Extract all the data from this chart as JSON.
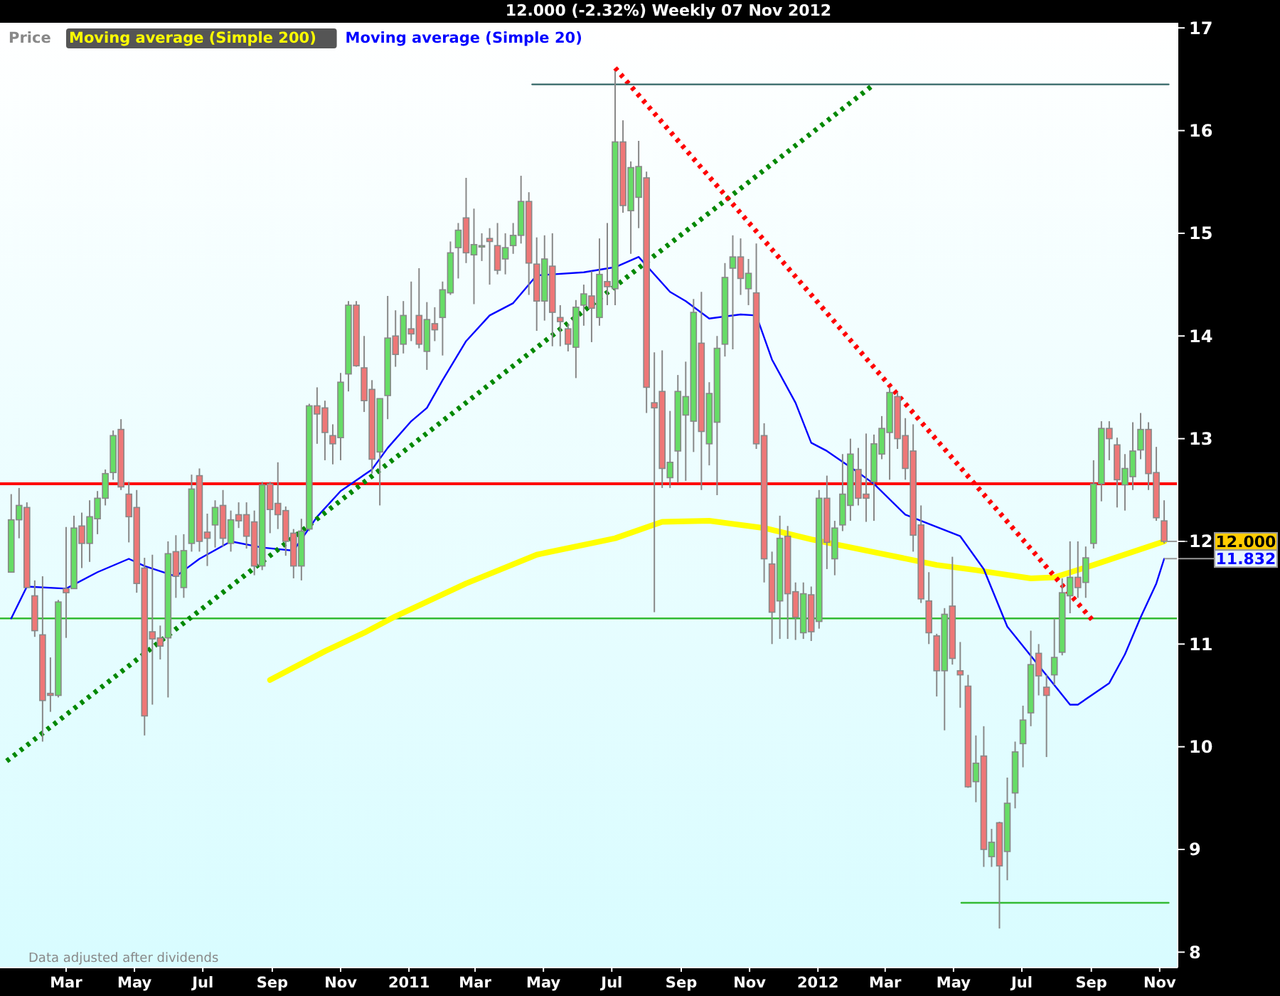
{
  "chart_data": {
    "type": "candlestick",
    "title": "12.000 (-2.32%)    Weekly  07 Nov 2012",
    "legend": "top left",
    "grid": false,
    "xlim": [
      "2010-01-01",
      "2012-11-17"
    ],
    "xticks": [
      {
        "value": "2010-03-01",
        "label": "Mar"
      },
      {
        "value": "2010-05-01",
        "label": "May"
      },
      {
        "value": "2010-07-01",
        "label": "Jul"
      },
      {
        "value": "2010-09-01",
        "label": "Sep"
      },
      {
        "value": "2010-11-01",
        "label": "Nov"
      },
      {
        "value": "2011-01-01",
        "label": "2011"
      },
      {
        "value": "2011-03-01",
        "label": "Mar"
      },
      {
        "value": "2011-05-01",
        "label": "May"
      },
      {
        "value": "2011-07-01",
        "label": "Jul"
      },
      {
        "value": "2011-09-01",
        "label": "Sep"
      },
      {
        "value": "2011-11-01",
        "label": "Nov"
      },
      {
        "value": "2012-01-01",
        "label": "2012"
      },
      {
        "value": "2012-03-01",
        "label": "Mar"
      },
      {
        "value": "2012-05-01",
        "label": "May"
      },
      {
        "value": "2012-07-01",
        "label": "Jul"
      },
      {
        "value": "2012-09-01",
        "label": "Sep"
      },
      {
        "value": "2012-11-01",
        "label": "Nov"
      }
    ],
    "ylim": [
      7.85,
      17.05
    ],
    "yticks": [
      8,
      9,
      10,
      11,
      12,
      13,
      14,
      15,
      16,
      17
    ],
    "x": [
      "2010-01-11",
      "2010-01-18",
      "2010-01-25",
      "2010-02-01",
      "2010-02-08",
      "2010-02-15",
      "2010-02-22",
      "2010-03-01",
      "2010-03-08",
      "2010-03-15",
      "2010-03-22",
      "2010-03-29",
      "2010-04-05",
      "2010-04-12",
      "2010-04-19",
      "2010-04-26",
      "2010-05-03",
      "2010-05-10",
      "2010-05-17",
      "2010-05-24",
      "2010-05-31",
      "2010-06-07",
      "2010-06-14",
      "2010-06-21",
      "2010-06-28",
      "2010-07-05",
      "2010-07-12",
      "2010-07-19",
      "2010-07-26",
      "2010-08-02",
      "2010-08-09",
      "2010-08-16",
      "2010-08-23",
      "2010-08-30",
      "2010-09-06",
      "2010-09-13",
      "2010-09-20",
      "2010-09-27",
      "2010-10-04",
      "2010-10-11",
      "2010-10-18",
      "2010-10-25",
      "2010-11-01",
      "2010-11-08",
      "2010-11-15",
      "2010-11-22",
      "2010-11-29",
      "2010-12-06",
      "2010-12-13",
      "2010-12-20",
      "2010-12-27",
      "2011-01-03",
      "2011-01-10",
      "2011-01-17",
      "2011-01-24",
      "2011-01-31",
      "2011-02-07",
      "2011-02-14",
      "2011-02-21",
      "2011-02-28",
      "2011-03-07",
      "2011-03-14",
      "2011-03-21",
      "2011-03-28",
      "2011-04-04",
      "2011-04-11",
      "2011-04-18",
      "2011-04-25",
      "2011-05-02",
      "2011-05-09",
      "2011-05-16",
      "2011-05-23",
      "2011-05-30",
      "2011-06-06",
      "2011-06-13",
      "2011-06-20",
      "2011-06-27",
      "2011-07-04",
      "2011-07-11",
      "2011-07-18",
      "2011-07-25",
      "2011-08-01",
      "2011-08-08",
      "2011-08-15",
      "2011-08-22",
      "2011-08-29",
      "2011-09-05",
      "2011-09-12",
      "2011-09-19",
      "2011-09-26",
      "2011-10-03",
      "2011-10-10",
      "2011-10-17",
      "2011-10-24",
      "2011-10-31",
      "2011-11-07",
      "2011-11-14",
      "2011-11-21",
      "2011-11-28",
      "2011-12-05",
      "2011-12-12",
      "2011-12-19",
      "2011-12-26",
      "2012-01-02",
      "2012-01-09",
      "2012-01-16",
      "2012-01-23",
      "2012-01-30",
      "2012-02-06",
      "2012-02-13",
      "2012-02-20",
      "2012-02-27",
      "2012-03-05",
      "2012-03-12",
      "2012-03-19",
      "2012-03-26",
      "2012-04-02",
      "2012-04-09",
      "2012-04-16",
      "2012-04-23",
      "2012-04-30",
      "2012-05-07",
      "2012-05-14",
      "2012-05-21",
      "2012-05-28",
      "2012-06-04",
      "2012-06-11",
      "2012-06-18",
      "2012-06-25",
      "2012-07-02",
      "2012-07-09",
      "2012-07-16",
      "2012-07-23",
      "2012-07-30",
      "2012-08-06",
      "2012-08-13",
      "2012-08-20",
      "2012-08-27",
      "2012-09-03",
      "2012-09-10",
      "2012-09-17",
      "2012-09-24",
      "2012-10-01",
      "2012-10-08",
      "2012-10-15",
      "2012-10-22",
      "2012-10-29",
      "2012-11-05"
    ],
    "series": [
      {
        "name": "Price",
        "type": "candlestick",
        "color": "#888888",
        "ohlc": [
          [
            11.7,
            12.46,
            11.7,
            12.21
          ],
          [
            12.21,
            12.52,
            12.03,
            12.35
          ],
          [
            12.33,
            12.38,
            11.55,
            11.55
          ],
          [
            11.47,
            11.62,
            11.07,
            11.13
          ],
          [
            11.09,
            11.66,
            10.05,
            10.45
          ],
          [
            10.52,
            10.87,
            10.34,
            10.5
          ],
          [
            10.5,
            11.43,
            10.48,
            11.41
          ],
          [
            11.54,
            12.14,
            11.06,
            11.5
          ],
          [
            11.54,
            12.25,
            11.54,
            12.13
          ],
          [
            12.15,
            12.28,
            11.74,
            11.98
          ],
          [
            11.98,
            12.4,
            11.8,
            12.24
          ],
          [
            12.22,
            12.49,
            12.07,
            12.42
          ],
          [
            12.42,
            12.7,
            12.35,
            12.66
          ],
          [
            12.67,
            13.08,
            12.6,
            13.03
          ],
          [
            13.09,
            13.19,
            12.5,
            12.53
          ],
          [
            12.46,
            12.58,
            11.99,
            12.24
          ],
          [
            12.33,
            12.5,
            11.5,
            11.59
          ],
          [
            11.74,
            11.84,
            10.11,
            10.3
          ],
          [
            11.12,
            11.87,
            10.41,
            11.05
          ],
          [
            11.06,
            11.18,
            10.85,
            10.98
          ],
          [
            11.06,
            12.0,
            10.48,
            11.88
          ],
          [
            11.9,
            12.06,
            11.45,
            11.66
          ],
          [
            11.55,
            12.07,
            11.45,
            11.91
          ],
          [
            11.98,
            12.65,
            11.9,
            12.51
          ],
          [
            12.64,
            12.71,
            11.9,
            12.0
          ],
          [
            12.09,
            12.27,
            11.76,
            12.03
          ],
          [
            12.16,
            12.4,
            11.94,
            12.33
          ],
          [
            12.35,
            12.5,
            11.95,
            12.03
          ],
          [
            11.98,
            12.3,
            11.9,
            12.21
          ],
          [
            12.26,
            12.38,
            12.13,
            12.2
          ],
          [
            12.26,
            12.38,
            11.93,
            12.05
          ],
          [
            12.19,
            12.3,
            11.67,
            11.76
          ],
          [
            11.76,
            12.58,
            11.72,
            12.55
          ],
          [
            12.56,
            12.58,
            12.08,
            12.31
          ],
          [
            12.37,
            12.77,
            12.12,
            12.26
          ],
          [
            12.3,
            12.34,
            11.86,
            12.0
          ],
          [
            12.08,
            12.12,
            11.64,
            11.76
          ],
          [
            11.76,
            12.22,
            11.62,
            12.1
          ],
          [
            12.12,
            13.34,
            12.1,
            13.32
          ],
          [
            13.32,
            13.5,
            12.95,
            13.24
          ],
          [
            13.3,
            13.37,
            12.79,
            13.06
          ],
          [
            13.03,
            13.14,
            12.75,
            12.95
          ],
          [
            13.01,
            13.64,
            12.79,
            13.55
          ],
          [
            13.63,
            14.34,
            13.46,
            14.3
          ],
          [
            14.3,
            14.34,
            13.7,
            13.71
          ],
          [
            13.69,
            14.0,
            13.26,
            13.37
          ],
          [
            13.48,
            13.57,
            12.66,
            12.8
          ],
          [
            12.87,
            13.39,
            12.35,
            13.39
          ],
          [
            13.42,
            14.39,
            13.19,
            13.98
          ],
          [
            14.0,
            14.25,
            13.7,
            13.82
          ],
          [
            13.92,
            14.34,
            13.83,
            14.2
          ],
          [
            14.07,
            14.53,
            13.95,
            14.02
          ],
          [
            14.2,
            14.66,
            13.88,
            13.92
          ],
          [
            13.85,
            14.33,
            13.67,
            14.16
          ],
          [
            14.12,
            14.28,
            13.95,
            14.06
          ],
          [
            14.18,
            14.53,
            13.81,
            14.45
          ],
          [
            14.42,
            14.92,
            14.4,
            14.81
          ],
          [
            14.86,
            15.1,
            14.56,
            15.03
          ],
          [
            15.15,
            15.54,
            14.71,
            14.81
          ],
          [
            14.79,
            15.24,
            14.31,
            14.89
          ],
          [
            14.88,
            15.0,
            14.73,
            14.88
          ],
          [
            14.95,
            15.05,
            14.5,
            14.92
          ],
          [
            14.88,
            15.1,
            14.6,
            14.64
          ],
          [
            14.75,
            15.0,
            14.6,
            14.86
          ],
          [
            14.88,
            15.1,
            14.8,
            14.98
          ],
          [
            14.98,
            15.56,
            14.9,
            15.31
          ],
          [
            15.31,
            15.4,
            14.4,
            14.71
          ],
          [
            14.7,
            14.96,
            14.05,
            14.34
          ],
          [
            14.34,
            14.98,
            14.15,
            14.75
          ],
          [
            14.68,
            15.0,
            13.9,
            14.23
          ],
          [
            14.18,
            14.3,
            13.9,
            14.14
          ],
          [
            14.07,
            14.12,
            13.85,
            13.92
          ],
          [
            13.89,
            14.35,
            13.59,
            14.28
          ],
          [
            14.3,
            14.5,
            14.1,
            14.41
          ],
          [
            14.39,
            14.63,
            13.94,
            14.27
          ],
          [
            14.18,
            14.95,
            14.1,
            14.6
          ],
          [
            14.53,
            15.1,
            14.3,
            14.48
          ],
          [
            14.46,
            16.58,
            14.3,
            15.89
          ],
          [
            15.89,
            16.1,
            15.2,
            15.27
          ],
          [
            15.22,
            15.7,
            14.8,
            15.64
          ],
          [
            15.35,
            15.9,
            15.05,
            15.65
          ],
          [
            15.54,
            15.6,
            13.25,
            13.5
          ],
          [
            13.35,
            13.84,
            11.31,
            13.3
          ],
          [
            13.46,
            13.86,
            12.52,
            12.71
          ],
          [
            12.62,
            13.27,
            12.52,
            12.77
          ],
          [
            12.88,
            13.62,
            12.57,
            13.46
          ],
          [
            13.23,
            13.75,
            12.59,
            13.41
          ],
          [
            13.17,
            14.36,
            12.87,
            14.23
          ],
          [
            13.93,
            14.43,
            12.5,
            13.07
          ],
          [
            12.95,
            13.55,
            12.74,
            13.44
          ],
          [
            13.16,
            14.0,
            12.45,
            13.88
          ],
          [
            13.92,
            14.71,
            13.8,
            14.57
          ],
          [
            14.66,
            14.98,
            13.87,
            14.77
          ],
          [
            14.77,
            14.95,
            14.4,
            14.56
          ],
          [
            14.46,
            14.75,
            14.3,
            14.61
          ],
          [
            14.42,
            14.9,
            12.9,
            12.95
          ],
          [
            13.03,
            13.15,
            11.6,
            11.83
          ],
          [
            11.78,
            11.9,
            11.0,
            11.31
          ],
          [
            11.42,
            12.25,
            11.05,
            12.03
          ],
          [
            12.05,
            12.15,
            11.05,
            11.49
          ],
          [
            11.51,
            11.6,
            11.04,
            11.26
          ],
          [
            11.11,
            11.6,
            11.05,
            11.49
          ],
          [
            11.48,
            11.56,
            11.03,
            11.12
          ],
          [
            11.22,
            12.5,
            11.15,
            12.42
          ],
          [
            12.42,
            12.64,
            11.73,
            11.99
          ],
          [
            11.83,
            12.2,
            11.67,
            12.13
          ],
          [
            12.16,
            12.85,
            12.1,
            12.46
          ],
          [
            12.35,
            13.0,
            12.2,
            12.85
          ],
          [
            12.7,
            12.91,
            12.35,
            12.42
          ],
          [
            12.46,
            13.05,
            12.19,
            12.42
          ],
          [
            12.58,
            13.04,
            12.2,
            12.95
          ],
          [
            12.85,
            13.22,
            12.8,
            13.1
          ],
          [
            13.06,
            13.5,
            12.6,
            13.45
          ],
          [
            13.41,
            13.45,
            12.9,
            13.0
          ],
          [
            13.03,
            13.2,
            12.6,
            12.71
          ],
          [
            12.88,
            13.14,
            11.9,
            12.06
          ],
          [
            12.16,
            12.35,
            11.4,
            11.44
          ],
          [
            11.42,
            11.7,
            11.0,
            11.11
          ],
          [
            11.08,
            11.1,
            10.49,
            10.74
          ],
          [
            10.74,
            11.35,
            10.16,
            11.29
          ],
          [
            11.37,
            11.85,
            10.8,
            10.86
          ],
          [
            10.74,
            11.02,
            10.38,
            10.7
          ],
          [
            10.59,
            10.7,
            9.6,
            9.61
          ],
          [
            9.66,
            10.11,
            9.46,
            9.84
          ],
          [
            9.91,
            10.2,
            8.83,
            9.0
          ],
          [
            8.93,
            9.2,
            8.83,
            9.07
          ],
          [
            9.26,
            9.27,
            8.23,
            8.84
          ],
          [
            8.98,
            9.7,
            8.7,
            9.45
          ],
          [
            9.55,
            10.05,
            9.4,
            9.95
          ],
          [
            10.03,
            10.4,
            9.8,
            10.26
          ],
          [
            10.33,
            11.13,
            10.2,
            10.8
          ],
          [
            10.91,
            11.0,
            10.5,
            10.69
          ],
          [
            10.58,
            10.7,
            9.9,
            10.5
          ],
          [
            10.7,
            11.25,
            10.6,
            10.87
          ],
          [
            10.92,
            11.64,
            10.89,
            11.5
          ],
          [
            11.47,
            12.0,
            11.3,
            11.65
          ],
          [
            11.65,
            12.0,
            11.45,
            11.55
          ],
          [
            11.6,
            11.95,
            11.45,
            11.84
          ],
          [
            11.98,
            12.79,
            11.93,
            12.56
          ],
          [
            12.56,
            13.17,
            12.39,
            13.1
          ],
          [
            13.1,
            13.17,
            12.79,
            13.0
          ],
          [
            12.94,
            13.01,
            12.33,
            12.6
          ],
          [
            12.55,
            12.85,
            12.3,
            12.71
          ],
          [
            12.63,
            13.16,
            12.5,
            12.88
          ],
          [
            12.89,
            13.25,
            12.8,
            13.09
          ],
          [
            13.09,
            13.16,
            12.5,
            12.66
          ],
          [
            12.67,
            12.92,
            12.2,
            12.23
          ],
          [
            12.2,
            12.4,
            11.98,
            12.0
          ]
        ]
      },
      {
        "name": "Moving average (Simple 200)",
        "type": "line",
        "color": "#ffff00",
        "line_style": "solid",
        "x": [
          "2010-08-30",
          "2010-10-18",
          "2010-11-22",
          "2010-12-20",
          "2011-02-21",
          "2011-04-25",
          "2011-07-04",
          "2011-08-15",
          "2011-09-26",
          "2011-11-14",
          "2011-12-26",
          "2012-02-13",
          "2012-04-16",
          "2012-05-21",
          "2012-07-09",
          "2012-07-30",
          "2012-09-03",
          "2012-11-05"
        ],
        "values": [
          10.65,
          10.93,
          11.11,
          11.27,
          11.59,
          11.87,
          12.03,
          12.19,
          12.2,
          12.13,
          12.02,
          11.91,
          11.77,
          11.72,
          11.64,
          11.65,
          11.77,
          12.0
        ]
      },
      {
        "name": "Moving average (Simple 20)",
        "type": "line",
        "color": "#0000ff",
        "line_style": "solid",
        "x": [
          "2010-01-11",
          "2010-01-25",
          "2010-03-01",
          "2010-03-29",
          "2010-04-26",
          "2010-05-10",
          "2010-06-07",
          "2010-06-28",
          "2010-07-26",
          "2010-08-23",
          "2010-09-20",
          "2010-10-11",
          "2010-11-01",
          "2010-11-29",
          "2010-12-13",
          "2011-01-03",
          "2011-01-17",
          "2011-01-31",
          "2011-02-21",
          "2011-03-14",
          "2011-04-04",
          "2011-04-18",
          "2011-04-25",
          "2011-06-06",
          "2011-07-04",
          "2011-07-25",
          "2011-08-22",
          "2011-09-05",
          "2011-09-26",
          "2011-10-24",
          "2011-11-07",
          "2011-11-21",
          "2011-12-12",
          "2011-12-26",
          "2012-01-09",
          "2012-02-06",
          "2012-02-20",
          "2012-03-19",
          "2012-04-09",
          "2012-05-07",
          "2012-05-28",
          "2012-06-18",
          "2012-07-16",
          "2012-08-13",
          "2012-08-20",
          "2012-09-17",
          "2012-10-01",
          "2012-10-15",
          "2012-10-29",
          "2012-11-05"
        ],
        "values": [
          11.25,
          11.56,
          11.54,
          11.7,
          11.83,
          11.76,
          11.66,
          11.83,
          12.0,
          11.94,
          11.91,
          12.24,
          12.49,
          12.7,
          12.91,
          13.17,
          13.3,
          13.57,
          13.95,
          14.2,
          14.32,
          14.5,
          14.59,
          14.62,
          14.67,
          14.77,
          14.43,
          14.34,
          14.17,
          14.21,
          14.2,
          13.77,
          13.35,
          12.96,
          12.88,
          12.67,
          12.56,
          12.26,
          12.17,
          12.05,
          11.73,
          11.17,
          10.79,
          10.41,
          10.41,
          10.62,
          10.9,
          11.26,
          11.59,
          11.83
        ]
      },
      {
        "type": "line",
        "color": "#008800",
        "line_style": "dotted",
        "x": [
          "2010-01-07",
          "2012-02-20"
        ],
        "values": [
          9.86,
          16.45
        ]
      },
      {
        "type": "line",
        "color": "#ff0000",
        "line_style": "dotted",
        "x": [
          "2011-07-04",
          "2012-09-03"
        ],
        "values": [
          16.61,
          11.22
        ]
      },
      {
        "type": "line",
        "color": "#336666",
        "line_style": "solid",
        "x": [
          "2011-04-21",
          "2012-11-09"
        ],
        "values": [
          16.45,
          16.45
        ]
      },
      {
        "type": "line",
        "color": "#33bb33",
        "line_style": "solid",
        "x": [
          "2012-05-08",
          "2012-11-09"
        ],
        "values": [
          8.48,
          8.48
        ]
      }
    ],
    "ref_lines": [
      {
        "axis": "y",
        "value": 12.56,
        "color": "#ff0000"
      },
      {
        "axis": "y",
        "value": 11.25,
        "color": "#33bb33"
      }
    ],
    "annotations": [
      "Data adjusted after dividends",
      {
        "text": "12.000",
        "x": "2012-11-05",
        "y": 12.0
      },
      {
        "text": "11.832",
        "x": "2012-11-05",
        "y": 11.832
      }
    ]
  }
}
